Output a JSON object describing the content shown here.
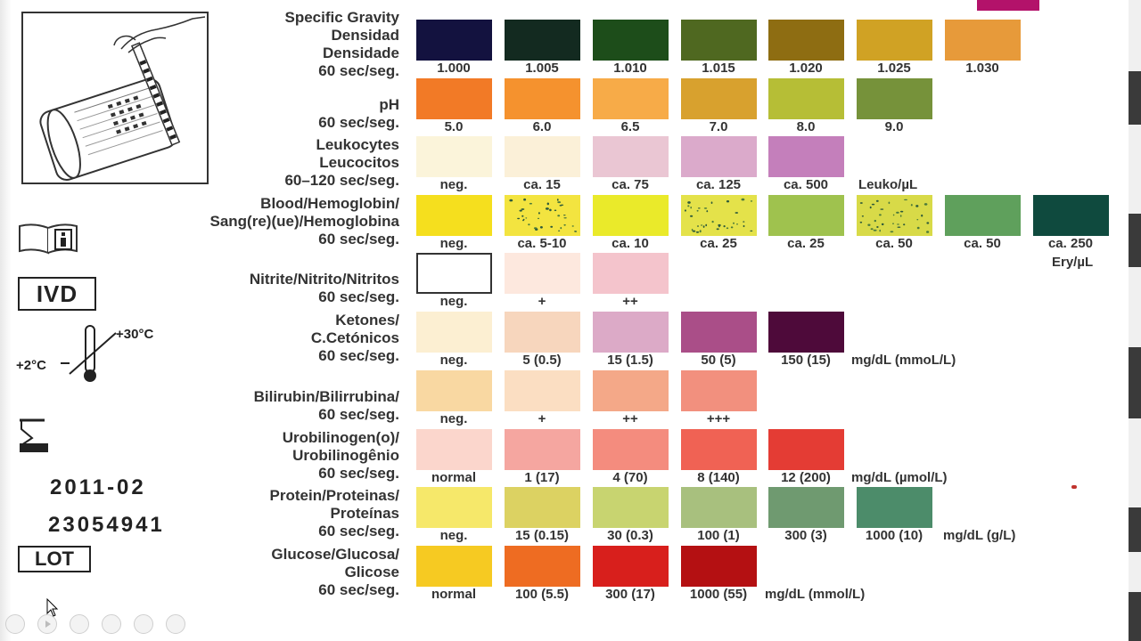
{
  "left_panel": {
    "ivd_label": "IVD",
    "temp_high": "+30°C",
    "temp_low": "+2°C",
    "expiry_date": "2011-02",
    "lot_number": "23054941",
    "lot_label": "LOT",
    "icons": [
      "test-strip-illustration",
      "info-book-icon",
      "thermometer-icon",
      "hourglass-icon"
    ]
  },
  "rows": [
    {
      "key": "sg",
      "label": [
        "Specific Gravity",
        "Densidad",
        "Densidade",
        "60 sec/seg."
      ],
      "pads": [
        {
          "color": "#13123f",
          "cap": "1.000"
        },
        {
          "color": "#132a20",
          "cap": "1.005"
        },
        {
          "color": "#1d4d1a",
          "cap": "1.010"
        },
        {
          "color": "#4f6820",
          "cap": "1.015"
        },
        {
          "color": "#8e6d12",
          "cap": "1.020"
        },
        {
          "color": "#d0a224",
          "cap": "1.025"
        },
        {
          "color": "#e79a3a",
          "cap": "1.030"
        }
      ],
      "unit": ""
    },
    {
      "key": "ph",
      "label": [
        "pH",
        "60 sec/seg."
      ],
      "pads": [
        {
          "color": "#f27a26",
          "cap": "5.0"
        },
        {
          "color": "#f5922e",
          "cap": "6.0"
        },
        {
          "color": "#f7ab48",
          "cap": "6.5"
        },
        {
          "color": "#d8a12e",
          "cap": "7.0"
        },
        {
          "color": "#b6be36",
          "cap": "8.0"
        },
        {
          "color": "#76923a",
          "cap": "9.0"
        }
      ],
      "unit": ""
    },
    {
      "key": "leu",
      "label": [
        "Leukocytes",
        "Leucocitos",
        "60–120 sec/seg."
      ],
      "pads": [
        {
          "color": "#fbf4da",
          "cap": "neg."
        },
        {
          "color": "#fbf0d8",
          "cap": "ca. 15"
        },
        {
          "color": "#eac6d3",
          "cap": "ca. 75"
        },
        {
          "color": "#dbaacb",
          "cap": "ca. 125"
        },
        {
          "color": "#c47fbb",
          "cap": "ca. 500"
        }
      ],
      "unit": "Leuko/µL"
    },
    {
      "key": "bld",
      "label": [
        "Blood/Hemoglobin/",
        "Sang(re)(ue)/Hemoglobina",
        "60 sec/seg."
      ],
      "pads": [
        {
          "color": "#f5df1e",
          "cap": "neg."
        },
        {
          "color": "#f3e440",
          "cap": "ca. 5-10",
          "dots": true
        },
        {
          "color": "#eaea2a",
          "cap": "ca. 10"
        },
        {
          "color": "#e4e24a",
          "cap": "ca. 25",
          "dots": true
        },
        {
          "color": "#9fc24e",
          "cap": "ca. 25"
        },
        {
          "color": "#d8da48",
          "cap": "ca. 50",
          "dots": true
        },
        {
          "color": "#5fa05c",
          "cap": "ca. 50"
        },
        {
          "color": "#0f4a3e",
          "cap": "ca. 250"
        }
      ],
      "unit": "Ery/µL"
    },
    {
      "key": "nit",
      "label": [
        "Nitrite/Nitrito/Nitritos",
        "60 sec/seg."
      ],
      "pads": [
        {
          "color": "#ffffff",
          "cap": "neg.",
          "outline": true
        },
        {
          "color": "#fde8de",
          "cap": "+"
        },
        {
          "color": "#f4c4cc",
          "cap": "++"
        }
      ],
      "unit": ""
    },
    {
      "key": "ket",
      "label": [
        "Ketones/",
        "C.Cetónicos",
        "60 sec/seg."
      ],
      "pads": [
        {
          "color": "#fcefd2",
          "cap": "neg."
        },
        {
          "color": "#f7d6bd",
          "cap": "5 (0.5)"
        },
        {
          "color": "#dcaac7",
          "cap": "15 (1.5)"
        },
        {
          "color": "#aa4e88",
          "cap": "50 (5)"
        },
        {
          "color": "#4e0a3a",
          "cap": "150 (15)"
        }
      ],
      "unit": "mg/dL (mmoL/L)"
    },
    {
      "key": "bil",
      "label": [
        "Bilirubin/Bilirrubina/",
        "60 sec/seg."
      ],
      "pads": [
        {
          "color": "#f9d8a2",
          "cap": "neg."
        },
        {
          "color": "#fbdec2",
          "cap": "+"
        },
        {
          "color": "#f4a888",
          "cap": "++"
        },
        {
          "color": "#f2907e",
          "cap": "+++"
        }
      ],
      "unit": ""
    },
    {
      "key": "uro",
      "label": [
        "Urobilinogen(o)/",
        "Urobilinogênio",
        "60 sec/seg."
      ],
      "pads": [
        {
          "color": "#fbd6cc",
          "cap": "normal"
        },
        {
          "color": "#f5a6a0",
          "cap": "1 (17)"
        },
        {
          "color": "#f48c7e",
          "cap": "4 (70)"
        },
        {
          "color": "#f06254",
          "cap": "8 (140)"
        },
        {
          "color": "#e43c34",
          "cap": "12 (200)"
        }
      ],
      "unit": "mg/dL (µmol/L)"
    },
    {
      "key": "pro",
      "label": [
        "Protein/Proteinas/",
        "Proteínas",
        "60 sec/seg."
      ],
      "pads": [
        {
          "color": "#f6e86a",
          "cap": "neg."
        },
        {
          "color": "#dcd262",
          "cap": "15 (0.15)"
        },
        {
          "color": "#c8d470",
          "cap": "30 (0.3)"
        },
        {
          "color": "#a8c07e",
          "cap": "100 (1)"
        },
        {
          "color": "#6f9a70",
          "cap": "300 (3)"
        },
        {
          "color": "#4c8c6a",
          "cap": "1000 (10)"
        }
      ],
      "unit": "mg/dL (g/L)"
    },
    {
      "key": "glu",
      "label": [
        "Glucose/Glucosa/",
        "Glicose",
        "60 sec/seg."
      ],
      "pads": [
        {
          "color": "#f6ca22",
          "cap": "normal"
        },
        {
          "color": "#ee6c22",
          "cap": "100 (5.5)"
        },
        {
          "color": "#d81f1c",
          "cap": "300 (17)"
        },
        {
          "color": "#b41012",
          "cap": "1000 (55)"
        }
      ],
      "unit": "mg/dL (mmol/L)"
    }
  ]
}
